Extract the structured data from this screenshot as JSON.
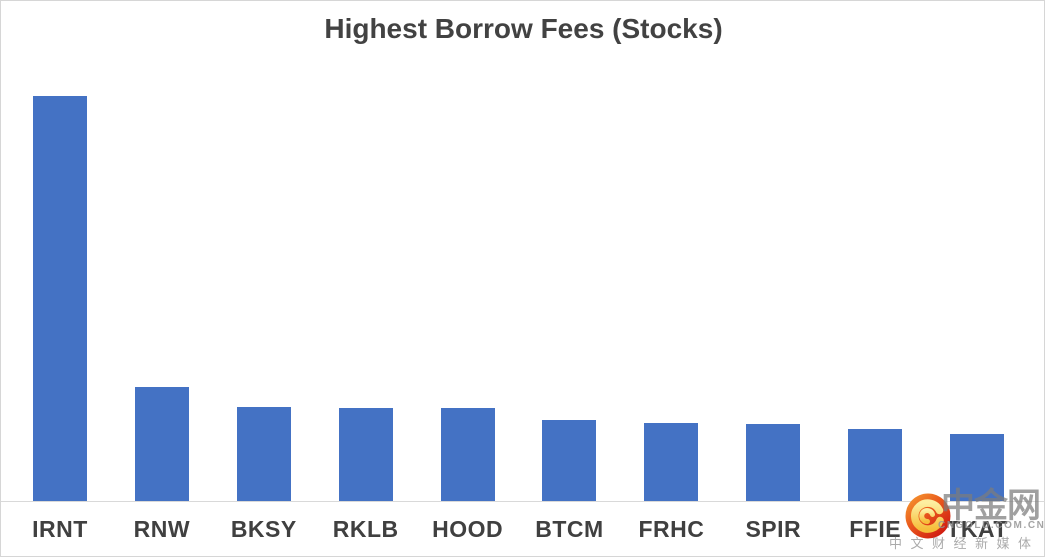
{
  "chart_data": {
    "type": "bar",
    "title": "Highest Borrow Fees (Stocks)",
    "categories": [
      "IRNT",
      "RNW",
      "BKSY",
      "RKLB",
      "HOOD",
      "BTCM",
      "FRHC",
      "SPIR",
      "FFIE",
      "TKAT"
    ],
    "values": [
      413,
      116,
      96,
      95,
      95,
      83,
      80,
      79,
      73,
      68
    ],
    "values_are_estimates": true,
    "xlabel": "",
    "ylabel": "",
    "ylim": [
      0,
      450
    ],
    "grid": false,
    "legend": false,
    "colors": {
      "bar": "#4472c4",
      "axis_line": "#d9d9d9",
      "frame_border": "#d6d6d6",
      "text": "#404040"
    }
  },
  "watermark": {
    "logo_icon": "cngold-cloud-logo",
    "brand": "中金网",
    "domain": "CNGOLD.COM.CN",
    "tagline": "中文财经新媒体",
    "colors": {
      "logo_orange": "#f7a233",
      "logo_red": "#cd1310",
      "logo_gold": "#f6be3b",
      "text_gray": "#9b9b9b"
    }
  }
}
